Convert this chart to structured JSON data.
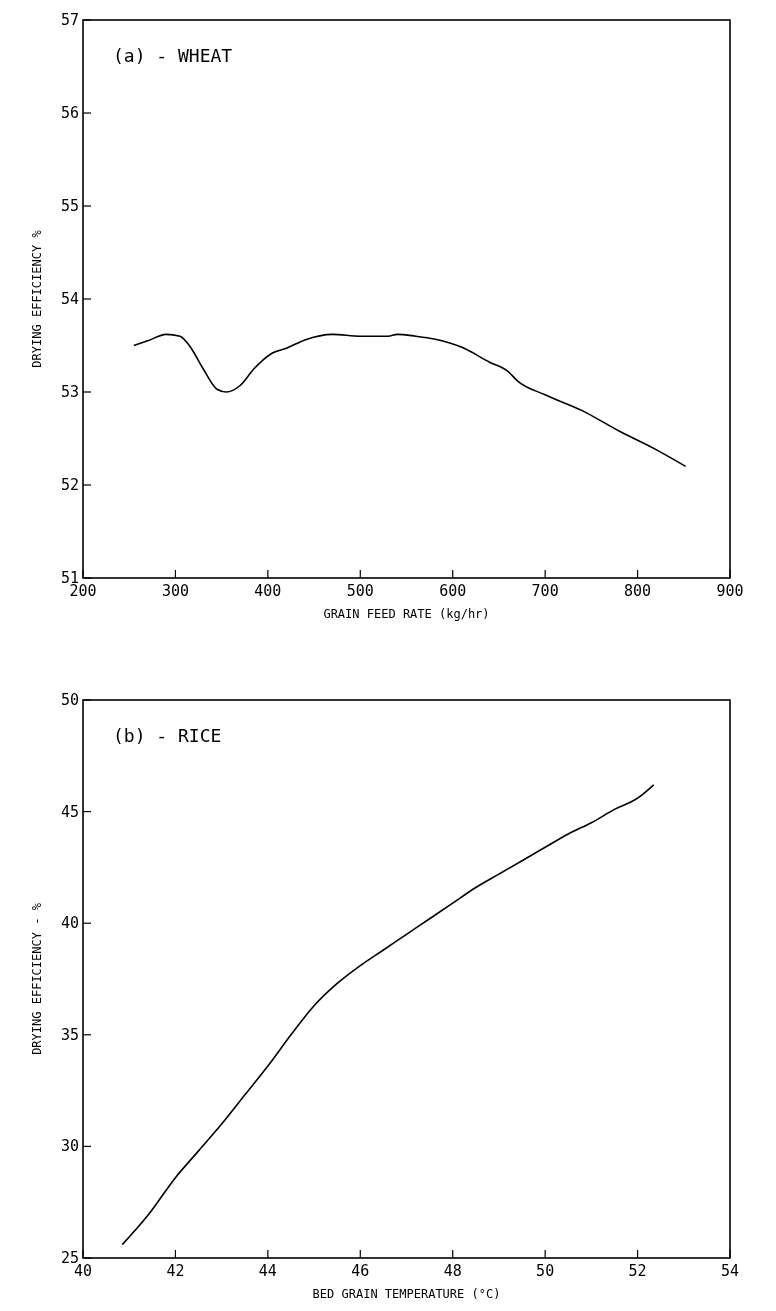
{
  "chart_data": [
    {
      "type": "line",
      "title": "(a) - WHEAT",
      "xlabel": "GRAIN FEED RATE (kg/hr)",
      "ylabel": "DRYING EFFICIENCY %",
      "xlim": [
        200,
        900
      ],
      "xticks": [
        200,
        300,
        400,
        500,
        600,
        700,
        800,
        900
      ],
      "ylim": [
        51,
        57
      ],
      "yticks": [
        51,
        52,
        53,
        54,
        55,
        56,
        57
      ],
      "grid": false,
      "marker": "none",
      "line_style": "solid",
      "series": [
        {
          "color": "#000000",
          "x": [
            255,
            270,
            290,
            305,
            315,
            330,
            345,
            355,
            370,
            385,
            405,
            420,
            440,
            470,
            500,
            530,
            540,
            560,
            580,
            610,
            640,
            660,
            670,
            700,
            740,
            780,
            820,
            852
          ],
          "values": [
            53.5,
            53.55,
            53.62,
            53.6,
            53.5,
            53.25,
            53.03,
            53.0,
            53.07,
            53.25,
            53.42,
            53.47,
            53.56,
            53.62,
            53.6,
            53.6,
            53.62,
            53.6,
            53.57,
            53.48,
            53.32,
            53.22,
            53.12,
            52.97,
            52.8,
            52.58,
            52.38,
            52.2
          ]
        }
      ]
    },
    {
      "type": "line",
      "title": "(b) - RICE",
      "xlabel": "BED GRAIN TEMPERATURE (°C)",
      "ylabel": "DRYING EFFICIENCY - %",
      "xlim": [
        40,
        54
      ],
      "xticks": [
        40,
        42,
        44,
        46,
        48,
        50,
        52,
        54
      ],
      "ylim": [
        25,
        50
      ],
      "yticks": [
        25,
        30,
        35,
        40,
        45,
        50
      ],
      "grid": false,
      "marker": "none",
      "line_style": "solid",
      "series": [
        {
          "color": "#000000",
          "x": [
            40.85,
            41.4,
            42,
            42.5,
            43,
            43.5,
            44,
            44.5,
            45,
            45.5,
            46,
            46.5,
            47,
            47.5,
            48,
            48.5,
            49,
            49.5,
            50,
            50.5,
            51,
            51.5,
            52,
            52.35
          ],
          "values": [
            25.6,
            26.9,
            28.6,
            29.8,
            31.0,
            32.3,
            33.6,
            35.0,
            36.3,
            37.3,
            38.1,
            38.8,
            39.5,
            40.2,
            40.9,
            41.6,
            42.2,
            42.8,
            43.4,
            44.0,
            44.5,
            45.1,
            45.6,
            46.2
          ]
        }
      ]
    }
  ]
}
